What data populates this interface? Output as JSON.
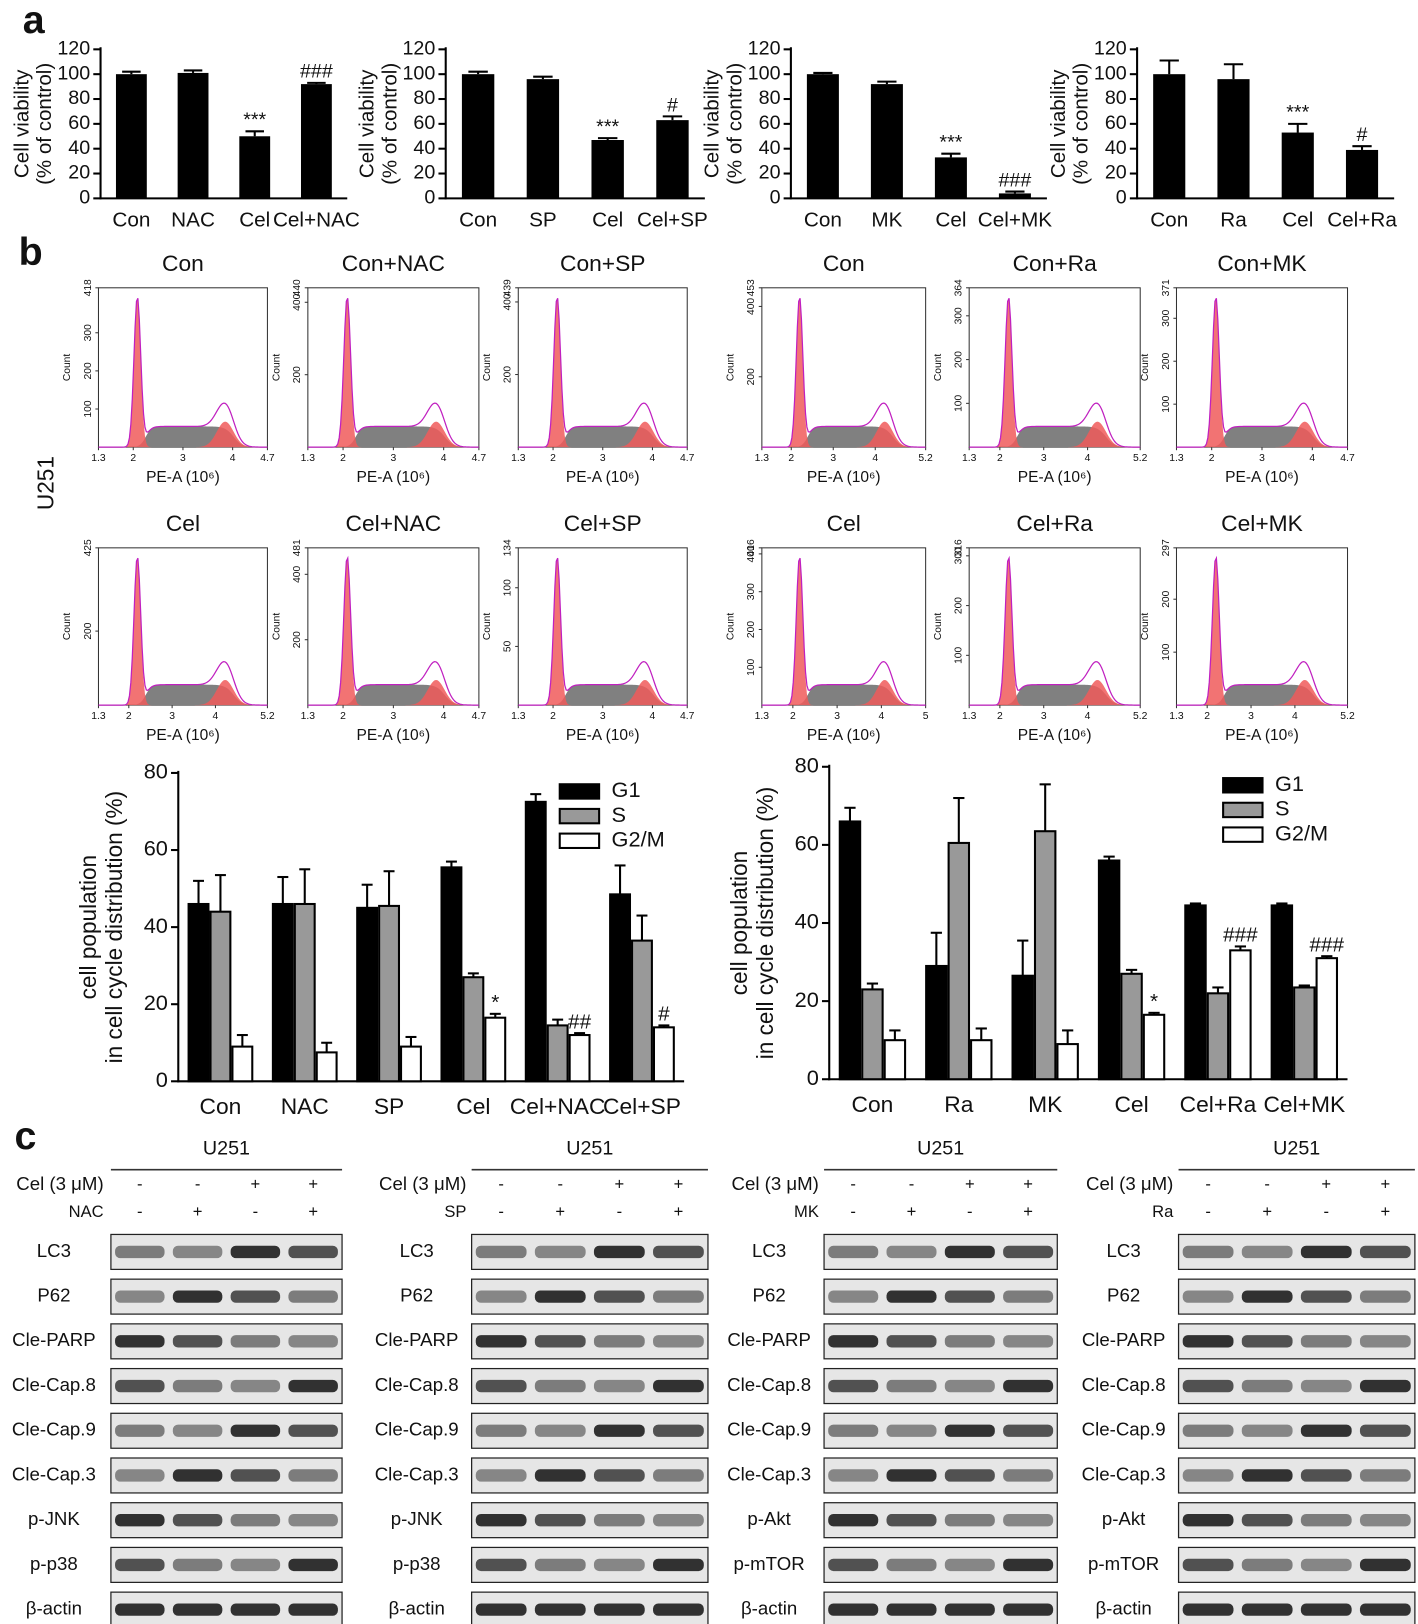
{
  "panel_labels": [
    "a",
    "b",
    "c"
  ],
  "chart_data": [
    {
      "type": "bar",
      "y_label": [
        "Cell viability",
        "(% of control)"
      ],
      "categories": [
        "Con",
        "NAC",
        "Cel",
        "Cel+NAC"
      ],
      "values": [
        100,
        101,
        50,
        92
      ],
      "errors": [
        2,
        2,
        4,
        1
      ],
      "significance": [
        null,
        null,
        "***",
        "###"
      ],
      "color": "#000000",
      "ylim": [
        0,
        120
      ],
      "yticks": [
        0,
        20,
        40,
        60,
        80,
        100,
        120
      ],
      "grid": false
    },
    {
      "type": "bar",
      "y_label": [
        "Cell viability",
        "(% of control)"
      ],
      "categories": [
        "Con",
        "SP",
        "Cel",
        "Cel+SP"
      ],
      "values": [
        100,
        96,
        47,
        63
      ],
      "errors": [
        2,
        2,
        1.5,
        3
      ],
      "significance": [
        null,
        null,
        "***",
        "#"
      ],
      "color": "#000000",
      "ylim": [
        0,
        120
      ],
      "yticks": [
        0,
        20,
        40,
        60,
        80,
        100,
        120
      ],
      "grid": false
    },
    {
      "type": "bar",
      "y_label": [
        "Cell viability",
        "(% of control)"
      ],
      "categories": [
        "Con",
        "MK",
        "Cel",
        "Cel+MK"
      ],
      "values": [
        100,
        92,
        33,
        4
      ],
      "errors": [
        1,
        2,
        3,
        1.5
      ],
      "significance": [
        null,
        null,
        "***",
        "###"
      ],
      "color": "#000000",
      "ylim": [
        0,
        120
      ],
      "yticks": [
        0,
        20,
        40,
        60,
        80,
        100,
        120
      ],
      "grid": false
    },
    {
      "type": "bar",
      "y_label": [
        "Cell viability",
        "(% of control)"
      ],
      "categories": [
        "Con",
        "Ra",
        "Cel",
        "Cel+Ra"
      ],
      "values": [
        100,
        96,
        53,
        39
      ],
      "errors": [
        11,
        12,
        7,
        3
      ],
      "significance": [
        null,
        null,
        "***",
        "#"
      ],
      "color": "#000000",
      "ylim": [
        0,
        120
      ],
      "yticks": [
        0,
        20,
        40,
        60,
        80,
        100,
        120
      ],
      "grid": false
    },
    {
      "type": "grouped_bar",
      "y_label": [
        "cell population",
        "in cell cycle distribution (%)"
      ],
      "categories": [
        "Con",
        "NAC",
        "SP",
        "Cel",
        "Cel+NAC",
        "Cel+SP"
      ],
      "series": [
        {
          "name": "G1",
          "color": "#000000",
          "values": [
            46,
            46,
            45,
            55.5,
            72.5,
            48.5
          ],
          "errors": [
            6,
            7,
            6,
            1.5,
            2,
            7.5
          ],
          "significance": [
            null,
            null,
            null,
            null,
            null,
            null
          ]
        },
        {
          "name": "S",
          "color": "#999999",
          "values": [
            44,
            46,
            45.5,
            27,
            14.5,
            36.5
          ],
          "errors": [
            9.5,
            9,
            9,
            1,
            1.5,
            6.5
          ],
          "significance": [
            null,
            null,
            null,
            null,
            null,
            null
          ]
        },
        {
          "name": "G2/M",
          "color": "#ffffff",
          "values": [
            9,
            7.5,
            9,
            16.5,
            12,
            14
          ],
          "errors": [
            3,
            2.5,
            2.5,
            1,
            0.5,
            0.5
          ],
          "significance": [
            null,
            null,
            null,
            "*",
            "##",
            "#"
          ]
        }
      ],
      "ylim": [
        0,
        80
      ],
      "yticks": [
        0,
        20,
        40,
        60,
        80
      ],
      "legend": "top-right",
      "grid": false
    },
    {
      "type": "grouped_bar",
      "y_label": [
        "cell population",
        "in cell cycle distribution (%)"
      ],
      "categories": [
        "Con",
        "Ra",
        "MK",
        "Cel",
        "Cel+Ra",
        "Cel+MK"
      ],
      "series": [
        {
          "name": "G1",
          "color": "#000000",
          "values": [
            66,
            29,
            26.5,
            56,
            44.5,
            44.5
          ],
          "errors": [
            3.5,
            8.5,
            9,
            1,
            0.5,
            0.5
          ],
          "significance": [
            null,
            null,
            null,
            null,
            null,
            null
          ]
        },
        {
          "name": "S",
          "color": "#999999",
          "values": [
            23,
            60.5,
            63.5,
            27,
            22,
            23.5
          ],
          "errors": [
            1.5,
            11.5,
            12,
            1,
            1.5,
            0.5
          ],
          "significance": [
            null,
            null,
            null,
            null,
            null,
            null
          ]
        },
        {
          "name": "G2/M",
          "color": "#ffffff",
          "values": [
            10,
            10,
            9,
            16.5,
            33,
            31
          ],
          "errors": [
            2.5,
            3,
            3.5,
            0.5,
            1,
            0.5
          ],
          "significance": [
            null,
            null,
            null,
            "*",
            "###",
            "###"
          ]
        }
      ],
      "ylim": [
        0,
        80
      ],
      "yticks": [
        0,
        20,
        40,
        60,
        80
      ],
      "legend": "top-right",
      "grid": false
    }
  ],
  "flow": {
    "side_label": "U251",
    "x_label": "PE-A (10⁶)",
    "y_label": "Count",
    "panels": [
      {
        "title": "Con",
        "ylim": [
          0,
          418
        ],
        "yticks": [
          100,
          200,
          300,
          418
        ],
        "xlim": [
          1.3,
          4.7
        ],
        "xticks": [
          1.3,
          2,
          3,
          4,
          4.7
        ]
      },
      {
        "title": "Con+NAC",
        "ylim": [
          0,
          440
        ],
        "yticks": [
          200,
          400,
          440
        ],
        "xlim": [
          1.3,
          4.7
        ],
        "xticks": [
          1.3,
          2,
          3,
          4,
          4.7
        ]
      },
      {
        "title": "Con+SP",
        "ylim": [
          0,
          439
        ],
        "yticks": [
          200,
          400,
          439
        ],
        "xlim": [
          1.3,
          4.7
        ],
        "xticks": [
          1.3,
          2,
          3,
          4,
          4.7
        ]
      },
      {
        "title": "Con",
        "ylim": [
          0,
          453
        ],
        "yticks": [
          200,
          400,
          453
        ],
        "xlim": [
          1.3,
          5.2
        ],
        "xticks": [
          1.3,
          2,
          3,
          4,
          5.2
        ]
      },
      {
        "title": "Con+Ra",
        "ylim": [
          0,
          364
        ],
        "yticks": [
          100,
          200,
          300,
          364
        ],
        "xlim": [
          1.3,
          5.2
        ],
        "xticks": [
          1.3,
          2,
          3,
          4,
          5.2
        ]
      },
      {
        "title": "Con+MK",
        "ylim": [
          0,
          371
        ],
        "yticks": [
          100,
          200,
          300,
          371
        ],
        "xlim": [
          1.3,
          4.7
        ],
        "xticks": [
          1.3,
          2,
          3,
          4,
          4.7
        ]
      },
      {
        "title": "Cel",
        "ylim": [
          0,
          425
        ],
        "yticks": [
          200,
          425
        ],
        "xlim": [
          1.3,
          5.2
        ],
        "xticks": [
          1.3,
          2,
          3,
          4,
          5.2
        ]
      },
      {
        "title": "Cel+NAC",
        "ylim": [
          0,
          481
        ],
        "yticks": [
          200,
          400,
          481
        ],
        "xlim": [
          1.3,
          4.7
        ],
        "xticks": [
          1.3,
          2,
          3,
          4,
          4.7
        ]
      },
      {
        "title": "Cel+SP",
        "ylim": [
          0,
          134
        ],
        "yticks": [
          50,
          100,
          134
        ],
        "xlim": [
          1.3,
          4.7
        ],
        "xticks": [
          1.3,
          2,
          3,
          4,
          4.7
        ]
      },
      {
        "title": "Cel",
        "ylim": [
          0,
          416
        ],
        "yticks": [
          100,
          200,
          300,
          400,
          416
        ],
        "xlim": [
          1.3,
          5
        ],
        "xticks": [
          1.3,
          2,
          3,
          4,
          5
        ]
      },
      {
        "title": "Cel+Ra",
        "ylim": [
          0,
          316
        ],
        "yticks": [
          100,
          200,
          300,
          316
        ],
        "xlim": [
          1.3,
          5.2
        ],
        "xticks": [
          1.3,
          2,
          3,
          4,
          5.2
        ]
      },
      {
        "title": "Cel+MK",
        "ylim": [
          0,
          297
        ],
        "yticks": [
          100,
          200,
          297
        ],
        "xlim": [
          1.3,
          5.2
        ],
        "xticks": [
          1.3,
          2,
          3,
          4,
          5.2
        ]
      }
    ]
  },
  "blots": [
    {
      "header": "U251",
      "treatments": [
        {
          "label": "Cel (3 μM)",
          "signs": [
            "-",
            "-",
            "+",
            "+"
          ]
        },
        {
          "label": "NAC",
          "signs": [
            "-",
            "+",
            "-",
            "+"
          ]
        }
      ],
      "proteins": [
        "LC3",
        "P62",
        "Cle-PARP",
        "Cle-Cap.8",
        "Cle-Cap.9",
        "Cle-Cap.3",
        "p-JNK",
        "p-p38",
        "β-actin"
      ]
    },
    {
      "header": "U251",
      "treatments": [
        {
          "label": "Cel (3 μM)",
          "signs": [
            "-",
            "-",
            "+",
            "+"
          ]
        },
        {
          "label": "SP",
          "signs": [
            "-",
            "+",
            "-",
            "+"
          ]
        }
      ],
      "proteins": [
        "LC3",
        "P62",
        "Cle-PARP",
        "Cle-Cap.8",
        "Cle-Cap.9",
        "Cle-Cap.3",
        "p-JNK",
        "p-p38",
        "β-actin"
      ]
    },
    {
      "header": "U251",
      "treatments": [
        {
          "label": "Cel (3 μM)",
          "signs": [
            "-",
            "-",
            "+",
            "+"
          ]
        },
        {
          "label": "MK",
          "signs": [
            "-",
            "+",
            "-",
            "+"
          ]
        }
      ],
      "proteins": [
        "LC3",
        "P62",
        "Cle-PARP",
        "Cle-Cap.8",
        "Cle-Cap.9",
        "Cle-Cap.3",
        "p-Akt",
        "p-mTOR",
        "β-actin"
      ]
    },
    {
      "header": "U251",
      "treatments": [
        {
          "label": "Cel (3 μM)",
          "signs": [
            "-",
            "-",
            "+",
            "+"
          ]
        },
        {
          "label": "Ra",
          "signs": [
            "-",
            "+",
            "-",
            "+"
          ]
        }
      ],
      "proteins": [
        "LC3",
        "P62",
        "Cle-PARP",
        "Cle-Cap.8",
        "Cle-Cap.9",
        "Cle-Cap.3",
        "p-Akt",
        "p-mTOR",
        "β-actin"
      ]
    }
  ]
}
